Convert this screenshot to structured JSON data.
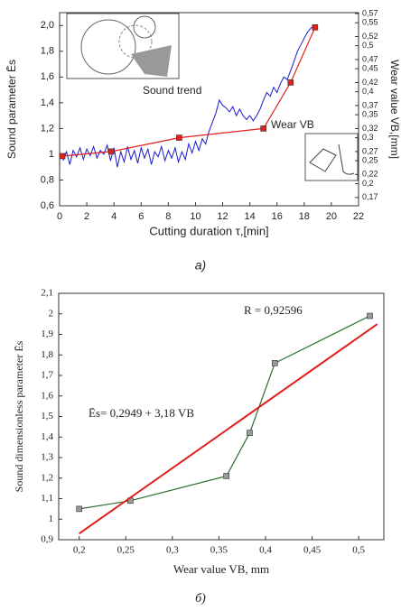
{
  "chart_data": [
    {
      "type": "line",
      "xlabel": "Cutting duration τ,[min]",
      "ylabel": "Sound parameter  Ēs",
      "y2label": "Wear value  VB,[mm]",
      "caption": "а)",
      "xlim": [
        0,
        22
      ],
      "xticks": [
        0,
        2,
        4,
        6,
        8,
        10,
        12,
        14,
        16,
        18,
        20,
        22
      ],
      "ylim": [
        0.6,
        2.1
      ],
      "yticks": [
        {
          "value": 0.6,
          "label": "0,6"
        },
        {
          "value": 0.8,
          "label": "0,8"
        },
        1,
        {
          "value": 1.2,
          "label": "1,2"
        },
        {
          "value": 1.4,
          "label": "1,4"
        },
        {
          "value": 1.6,
          "label": "1,6"
        },
        {
          "value": 1.8,
          "label": "1,8"
        },
        {
          "value": 2.0,
          "label": "2,0"
        }
      ],
      "y2lim": [
        0.152,
        0.572
      ],
      "y2ticks": [
        {
          "value": 0.17,
          "label": "0,17"
        },
        {
          "value": 0.2,
          "label": "0,2"
        },
        {
          "value": 0.22,
          "label": "0,22"
        },
        {
          "value": 0.25,
          "label": "0,25"
        },
        {
          "value": 0.27,
          "label": "0,27"
        },
        {
          "value": 0.3,
          "label": "0,3"
        },
        {
          "value": 0.32,
          "label": "0,32"
        },
        {
          "value": 0.35,
          "label": "0,35"
        },
        {
          "value": 0.37,
          "label": "0,37"
        },
        {
          "value": 0.4,
          "label": "0,4"
        },
        {
          "value": 0.42,
          "label": "0,42"
        },
        {
          "value": 0.45,
          "label": "0,45"
        },
        {
          "value": 0.47,
          "label": "0,47"
        },
        {
          "value": 0.5,
          "label": "0,5"
        },
        {
          "value": 0.52,
          "label": "0,52"
        },
        {
          "value": 0.55,
          "label": "0,55"
        },
        {
          "value": 0.57,
          "label": "0,57"
        }
      ],
      "grid": false,
      "series": [
        {
          "name": "Sound trend",
          "color": "#1a1ad0",
          "marker": null,
          "x": [
            0.25,
            0.5,
            0.75,
            1,
            1.25,
            1.5,
            1.75,
            2,
            2.25,
            2.5,
            2.75,
            3,
            3.25,
            3.5,
            3.75,
            4,
            4.25,
            4.5,
            4.75,
            5,
            5.25,
            5.5,
            5.75,
            6,
            6.25,
            6.5,
            6.75,
            7,
            7.25,
            7.5,
            7.75,
            8,
            8.25,
            8.5,
            8.75,
            9,
            9.25,
            9.5,
            9.75,
            10,
            10.25,
            10.5,
            10.75,
            11,
            11.25,
            11.5,
            11.75,
            12,
            12.25,
            12.5,
            12.75,
            13,
            13.25,
            13.5,
            13.75,
            14,
            14.25,
            14.5,
            14.75,
            15,
            15.25,
            15.5,
            15.75,
            16,
            16.25,
            16.5,
            16.75,
            17,
            17.25,
            17.5,
            17.75,
            18,
            18.25,
            18.5,
            18.75
          ],
          "values": [
            0.95,
            1.02,
            0.92,
            1.03,
            0.98,
            1.05,
            0.96,
            1.04,
            0.99,
            1.06,
            0.97,
            1.03,
            1.0,
            1.07,
            0.95,
            1.05,
            0.9,
            1.02,
            0.94,
            1.06,
            0.96,
            1.03,
            0.93,
            1.05,
            0.97,
            1.04,
            0.92,
            1.02,
            0.98,
            1.06,
            0.95,
            1.03,
            0.97,
            1.05,
            0.94,
            1.02,
            0.96,
            1.08,
            1.01,
            1.1,
            1.03,
            1.12,
            1.08,
            1.18,
            1.25,
            1.32,
            1.42,
            1.38,
            1.36,
            1.33,
            1.37,
            1.3,
            1.35,
            1.3,
            1.27,
            1.3,
            1.26,
            1.3,
            1.35,
            1.42,
            1.48,
            1.45,
            1.52,
            1.48,
            1.55,
            1.6,
            1.58,
            1.65,
            1.72,
            1.8,
            1.85,
            1.9,
            1.95,
            1.98,
            2.0
          ]
        },
        {
          "name": "Wear VB",
          "color": "#e0201c",
          "marker": "square",
          "axis": "y2",
          "x": [
            0.2,
            3.8,
            8.8,
            15,
            17,
            18.8
          ],
          "values": [
            0.26,
            0.27,
            0.3,
            0.32,
            0.42,
            0.54
          ]
        }
      ]
    },
    {
      "type": "line",
      "xlabel": "Wear value VB, mm",
      "ylabel": "Sound dimensionless parameter  Ēs",
      "caption": "б)",
      "xlim": [
        0.178,
        0.527
      ],
      "xticks": [
        {
          "value": 0.2,
          "label": "0,2"
        },
        {
          "value": 0.25,
          "label": "0,25"
        },
        {
          "value": 0.3,
          "label": "0,3"
        },
        {
          "value": 0.35,
          "label": "0,35"
        },
        {
          "value": 0.4,
          "label": "0,4"
        },
        {
          "value": 0.45,
          "label": "0,45"
        },
        {
          "value": 0.5,
          "label": "0,5"
        }
      ],
      "ylim": [
        0.9,
        2.1
      ],
      "yticks": [
        {
          "value": 0.9,
          "label": "0,9"
        },
        1,
        {
          "value": 1.1,
          "label": "1,1"
        },
        {
          "value": 1.2,
          "label": "1,2"
        },
        {
          "value": 1.3,
          "label": "1,3"
        },
        {
          "value": 1.4,
          "label": "1,4"
        },
        {
          "value": 1.5,
          "label": "1,5"
        },
        {
          "value": 1.6,
          "label": "1,6"
        },
        {
          "value": 1.7,
          "label": "1,7"
        },
        {
          "value": 1.8,
          "label": "1,8"
        },
        {
          "value": 1.9,
          "label": "1,9"
        },
        2,
        {
          "value": 2.1,
          "label": "2,1"
        }
      ],
      "grid": false,
      "annotations": [
        "R = 0,92596",
        "Ēs= 0,2949 + 3,18 VB"
      ],
      "series": [
        {
          "color": "#2e6b2e",
          "marker": "square",
          "x": [
            0.2,
            0.255,
            0.358,
            0.383,
            0.41,
            0.512
          ],
          "values": [
            1.05,
            1.09,
            1.21,
            1.42,
            1.76,
            1.99
          ]
        },
        {
          "color": "#e0201c",
          "marker": null,
          "x": [
            0.2,
            0.52
          ],
          "values": [
            0.93,
            1.95
          ]
        }
      ]
    }
  ]
}
